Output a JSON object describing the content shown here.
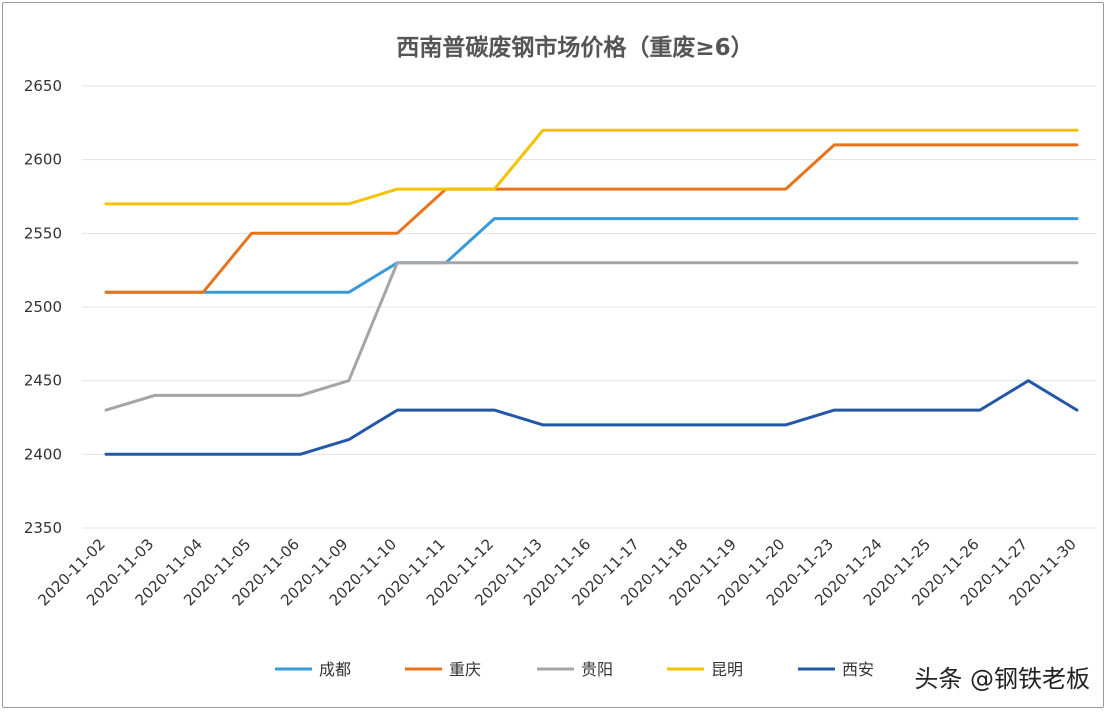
{
  "chart_data": {
    "type": "line",
    "title": "西南普碳废钢市场价格（重废≥6）",
    "xlabel": "",
    "ylabel": "",
    "ylim": [
      2350,
      2650
    ],
    "yticks": [
      2350,
      2400,
      2450,
      2500,
      2550,
      2600,
      2650
    ],
    "grid": true,
    "legend_position": "bottom",
    "categories": [
      "2020-11-02",
      "2020-11-03",
      "2020-11-04",
      "2020-11-05",
      "2020-11-06",
      "2020-11-09",
      "2020-11-10",
      "2020-11-11",
      "2020-11-12",
      "2020-11-13",
      "2020-11-16",
      "2020-11-17",
      "2020-11-18",
      "2020-11-19",
      "2020-11-20",
      "2020-11-23",
      "2020-11-24",
      "2020-11-25",
      "2020-11-26",
      "2020-11-27",
      "2020-11-30"
    ],
    "series": [
      {
        "name": "成都",
        "color": "#3a9ad9",
        "values": [
          2510,
          2510,
          2510,
          2510,
          2510,
          2510,
          2530,
          2530,
          2560,
          2560,
          2560,
          2560,
          2560,
          2560,
          2560,
          2560,
          2560,
          2560,
          2560,
          2560,
          2560
        ]
      },
      {
        "name": "重庆",
        "color": "#e8731f",
        "values": [
          2510,
          2510,
          2510,
          2550,
          2550,
          2550,
          2550,
          2580,
          2580,
          2580,
          2580,
          2580,
          2580,
          2580,
          2580,
          2610,
          2610,
          2610,
          2610,
          2610,
          2610
        ]
      },
      {
        "name": "贵阳",
        "color": "#a5a5a5",
        "values": [
          2430,
          2440,
          2440,
          2440,
          2440,
          2450,
          2530,
          2530,
          2530,
          2530,
          2530,
          2530,
          2530,
          2530,
          2530,
          2530,
          2530,
          2530,
          2530,
          2530,
          2530
        ]
      },
      {
        "name": "昆明",
        "color": "#f5c200",
        "values": [
          2570,
          2570,
          2570,
          2570,
          2570,
          2570,
          2580,
          2580,
          2580,
          2620,
          2620,
          2620,
          2620,
          2620,
          2620,
          2620,
          2620,
          2620,
          2620,
          2620,
          2620
        ]
      },
      {
        "name": "西安",
        "color": "#2457a6",
        "values": [
          2400,
          2400,
          2400,
          2400,
          2400,
          2410,
          2430,
          2430,
          2430,
          2420,
          2420,
          2420,
          2420,
          2420,
          2420,
          2430,
          2430,
          2430,
          2430,
          2450,
          2430
        ]
      }
    ]
  },
  "watermark": "头条 @钢铁老板"
}
